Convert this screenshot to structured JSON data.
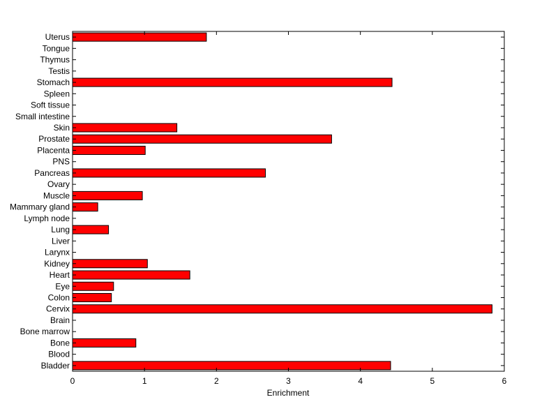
{
  "chart_data": {
    "type": "bar",
    "orientation": "horizontal",
    "title": "",
    "xlabel": "Enrichment",
    "ylabel": "",
    "xlim": [
      0,
      6
    ],
    "x_ticks": [
      0,
      1,
      2,
      3,
      4,
      5,
      6
    ],
    "grid": false,
    "legend": "none",
    "bar_color": "#ff0000",
    "bar_edge_color": "#000000",
    "categories": [
      "Bladder",
      "Blood",
      "Bone",
      "Bone marrow",
      "Brain",
      "Cervix",
      "Colon",
      "Eye",
      "Heart",
      "Kidney",
      "Larynx",
      "Liver",
      "Lung",
      "Lymph node",
      "Mammary gland",
      "Muscle",
      "Ovary",
      "Pancreas",
      "PNS",
      "Placenta",
      "Prostate",
      "Skin",
      "Small intestine",
      "Soft tissue",
      "Spleen",
      "Stomach",
      "Testis",
      "Thymus",
      "Tongue",
      "Uterus"
    ],
    "values": [
      4.42,
      0,
      0.88,
      0,
      0,
      5.83,
      0.54,
      0.57,
      1.63,
      1.04,
      0,
      0,
      0.5,
      0,
      0.35,
      0.97,
      0,
      2.68,
      0,
      1.01,
      3.6,
      1.45,
      0,
      0,
      0,
      4.44,
      0,
      0,
      0,
      1.86
    ]
  }
}
